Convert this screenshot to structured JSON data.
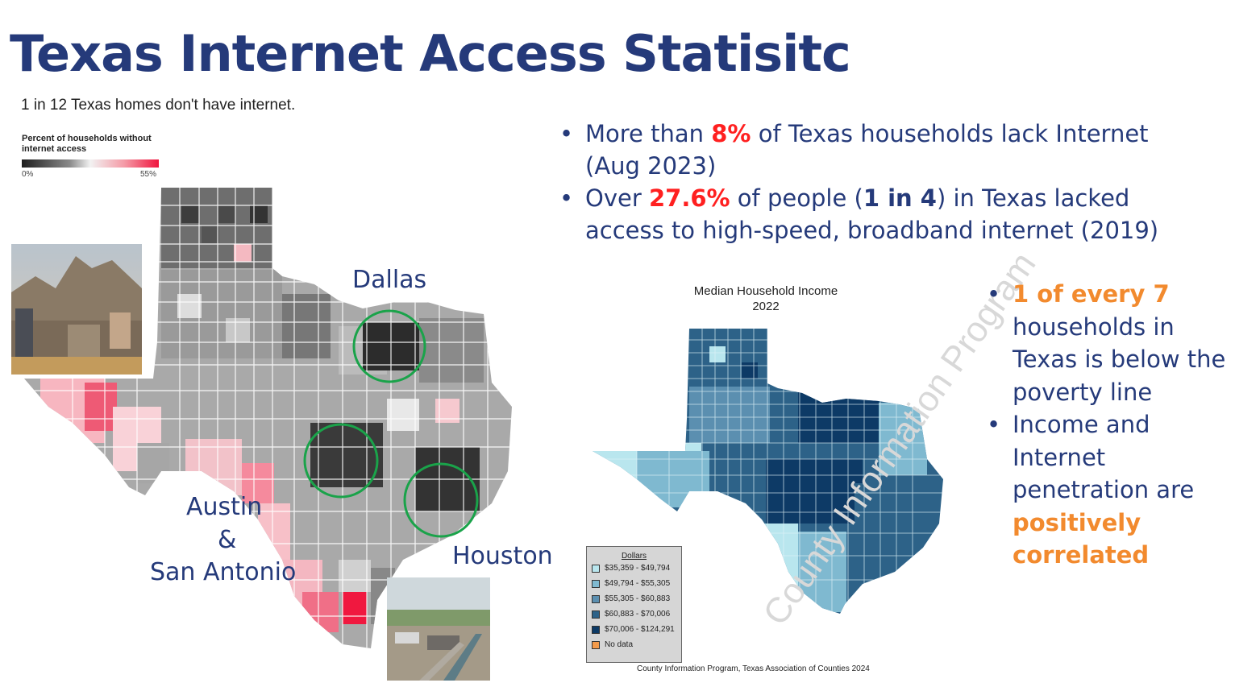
{
  "title": "Texas Internet Access Statisitc",
  "subtitle": "1 in 12 Texas homes don't have internet.",
  "legend": {
    "title": "Percent of households without internet access",
    "min": "0%",
    "max": "55%"
  },
  "bullets_top": [
    {
      "pre": "More than ",
      "highlight": "8%",
      "post": " of Texas households lack Internet (Aug 2023)"
    },
    {
      "pre": "Over ",
      "highlight": "27.6%",
      "mid": " of people (",
      "bold": "1 in 4",
      "post": ") in Texas lacked access to high-speed, broadband internet (2019)"
    }
  ],
  "bullets_right": [
    {
      "highlight": "1 of every 7",
      "post": " households in Texas is below the poverty line"
    },
    {
      "pre": "Income and Internet penetration are ",
      "highlight": "positively correlated"
    }
  ],
  "cities": {
    "dallas": "Dallas",
    "austin": "Austin",
    "amp": "&",
    "san_antonio": "San Antonio",
    "houston": "Houston"
  },
  "income_map": {
    "title_line1": "Median Household Income",
    "title_line2": "2022",
    "legend_heading": "Dollars",
    "legend_items": [
      {
        "label": "$35,359 - $49,794",
        "color": "#b9e6ee"
      },
      {
        "label": "$49,794 - $55,305",
        "color": "#7fb9d0"
      },
      {
        "label": "$55,305 - $60,883",
        "color": "#5b8fb0"
      },
      {
        "label": "$60,883 - $70,006",
        "color": "#2d6288"
      },
      {
        "label": "$70,006 - $124,291",
        "color": "#0d3a66"
      },
      {
        "label": "No data",
        "color": "#f39a4a"
      }
    ],
    "watermark": "County Information Program",
    "credit": "County Information Program, Texas Association of Counties 2024"
  },
  "colors": {
    "title": "#253a7a",
    "red": "#ff2020",
    "orange": "#f28a2e",
    "circle": "#1aa34a"
  }
}
